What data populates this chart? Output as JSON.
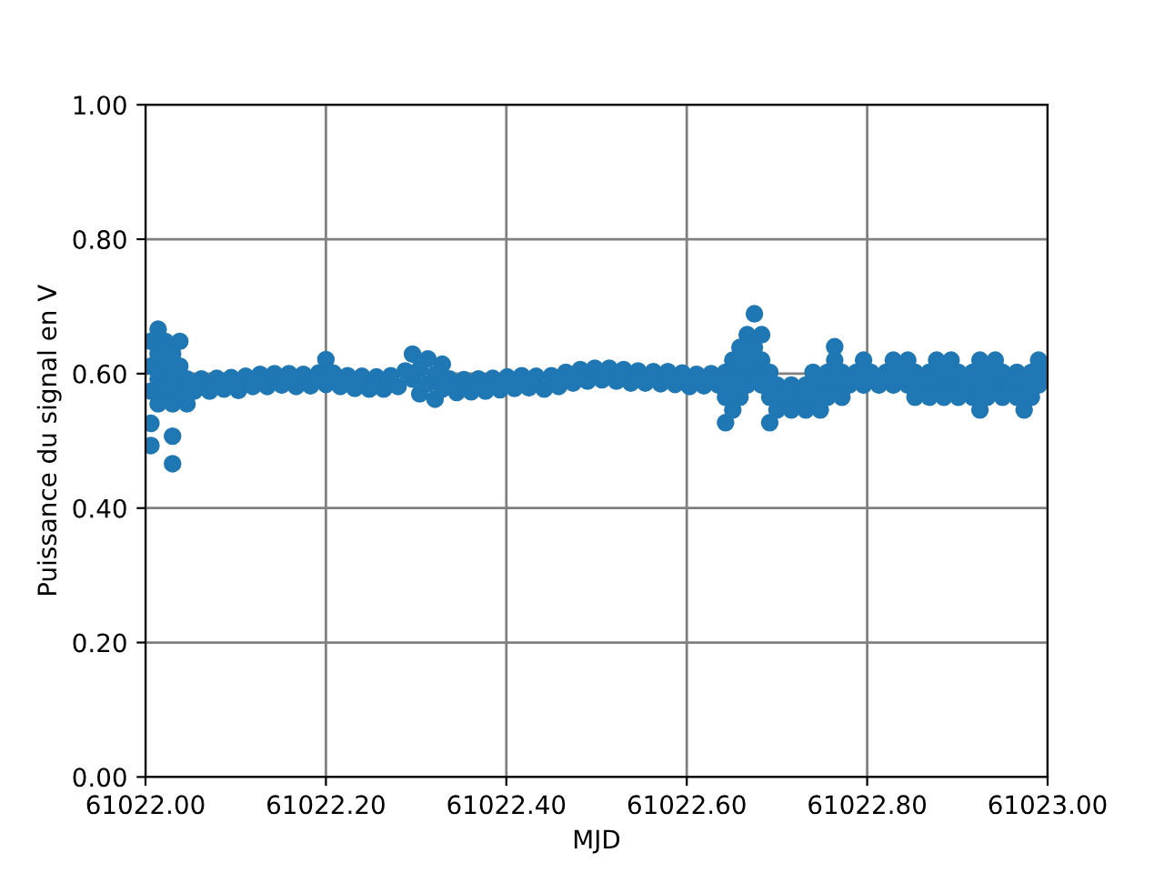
{
  "chart_data": {
    "type": "scatter",
    "xlabel": "MJD",
    "ylabel": "Puissance du signal en V",
    "color": "#1f77b4",
    "marker": "circle",
    "grid": true,
    "xlim": [
      61022.0,
      61023.0
    ],
    "xticks": [
      {
        "value": 61022.0,
        "label": "61022.00"
      },
      {
        "value": 61022.2,
        "label": "61022.20"
      },
      {
        "value": 61022.4,
        "label": "61022.40"
      },
      {
        "value": 61022.6,
        "label": "61022.60"
      },
      {
        "value": 61022.8,
        "label": "61022.80"
      },
      {
        "value": 61023.0,
        "label": "61023.00"
      }
    ],
    "ylim": [
      0,
      1
    ],
    "yticks": [
      {
        "value": 0,
        "label": "0.00"
      },
      {
        "value": 0.2,
        "label": "0.20"
      },
      {
        "value": 0.4,
        "label": "0.40"
      },
      {
        "value": 0.6,
        "label": "0.60"
      },
      {
        "value": 0.8,
        "label": "0.80"
      },
      {
        "value": 1.0,
        "label": "1.00"
      }
    ],
    "x": [
      61022.006,
      61022.006,
      61022.006,
      61022.006,
      61022.006,
      61022.014,
      61022.014,
      61022.014,
      61022.014,
      61022.022,
      61022.022,
      61022.022,
      61022.03,
      61022.03,
      61022.03,
      61022.03,
      61022.03,
      61022.038,
      61022.038,
      61022.038,
      61022.046,
      61022.046,
      61022.054,
      61022.062,
      61022.071,
      61022.079,
      61022.087,
      61022.095,
      61022.103,
      61022.111,
      61022.119,
      61022.127,
      61022.135,
      61022.143,
      61022.151,
      61022.159,
      61022.167,
      61022.175,
      61022.183,
      61022.192,
      61022.2,
      61022.2,
      61022.208,
      61022.216,
      61022.224,
      61022.232,
      61022.24,
      61022.248,
      61022.256,
      61022.264,
      61022.272,
      61022.28,
      61022.288,
      61022.296,
      61022.296,
      61022.304,
      61022.304,
      61022.313,
      61022.313,
      61022.321,
      61022.321,
      61022.329,
      61022.329,
      61022.337,
      61022.345,
      61022.353,
      61022.361,
      61022.369,
      61022.377,
      61022.385,
      61022.393,
      61022.401,
      61022.409,
      61022.417,
      61022.425,
      61022.433,
      61022.442,
      61022.45,
      61022.458,
      61022.466,
      61022.474,
      61022.482,
      61022.49,
      61022.498,
      61022.506,
      61022.514,
      61022.522,
      61022.53,
      61022.538,
      61022.546,
      61022.554,
      61022.563,
      61022.571,
      61022.579,
      61022.587,
      61022.595,
      61022.603,
      61022.611,
      61022.619,
      61022.627,
      61022.635,
      61022.643,
      61022.643,
      61022.643,
      61022.651,
      61022.651,
      61022.651,
      61022.659,
      61022.659,
      61022.659,
      61022.667,
      61022.667,
      61022.667,
      61022.675,
      61022.675,
      61022.675,
      61022.683,
      61022.683,
      61022.683,
      61022.692,
      61022.692,
      61022.692,
      61022.7,
      61022.7,
      61022.708,
      61022.716,
      61022.716,
      61022.724,
      61022.732,
      61022.732,
      61022.74,
      61022.74,
      61022.748,
      61022.748,
      61022.756,
      61022.756,
      61022.764,
      61022.764,
      61022.764,
      61022.772,
      61022.772,
      61022.78,
      61022.788,
      61022.796,
      61022.796,
      61022.804,
      61022.813,
      61022.821,
      61022.829,
      61022.829,
      61022.837,
      61022.845,
      61022.845,
      61022.853,
      61022.853,
      61022.861,
      61022.869,
      61022.869,
      61022.877,
      61022.877,
      61022.885,
      61022.885,
      61022.893,
      61022.893,
      61022.901,
      61022.901,
      61022.909,
      61022.917,
      61022.917,
      61022.925,
      61022.925,
      61022.925,
      61022.933,
      61022.933,
      61022.942,
      61022.942,
      61022.95,
      61022.95,
      61022.958,
      61022.966,
      61022.966,
      61022.974,
      61022.974,
      61022.982,
      61022.982,
      61022.99,
      61022.99,
      61022.998
    ],
    "values": [
      0.574,
      0.611,
      0.648,
      0.526,
      0.493,
      0.555,
      0.592,
      0.629,
      0.666,
      0.574,
      0.611,
      0.648,
      0.555,
      0.592,
      0.629,
      0.507,
      0.466,
      0.574,
      0.611,
      0.648,
      0.555,
      0.592,
      0.574,
      0.592,
      0.574,
      0.593,
      0.577,
      0.594,
      0.575,
      0.596,
      0.581,
      0.599,
      0.581,
      0.6,
      0.583,
      0.6,
      0.581,
      0.599,
      0.582,
      0.601,
      0.584,
      0.621,
      0.601,
      0.581,
      0.597,
      0.578,
      0.596,
      0.577,
      0.595,
      0.577,
      0.597,
      0.581,
      0.604,
      0.592,
      0.629,
      0.607,
      0.57,
      0.585,
      0.622,
      0.599,
      0.562,
      0.577,
      0.614,
      0.592,
      0.572,
      0.591,
      0.573,
      0.592,
      0.574,
      0.593,
      0.576,
      0.595,
      0.578,
      0.597,
      0.579,
      0.596,
      0.577,
      0.597,
      0.581,
      0.602,
      0.586,
      0.606,
      0.589,
      0.608,
      0.591,
      0.608,
      0.589,
      0.606,
      0.586,
      0.604,
      0.586,
      0.603,
      0.585,
      0.603,
      0.584,
      0.601,
      0.581,
      0.599,
      0.582,
      0.6,
      0.583,
      0.602,
      0.565,
      0.527,
      0.62,
      0.583,
      0.546,
      0.639,
      0.602,
      0.565,
      0.658,
      0.62,
      0.583,
      0.689,
      0.639,
      0.602,
      0.658,
      0.62,
      0.583,
      0.602,
      0.565,
      0.527,
      0.546,
      0.583,
      0.565,
      0.546,
      0.583,
      0.565,
      0.546,
      0.583,
      0.565,
      0.602,
      0.546,
      0.583,
      0.565,
      0.602,
      0.583,
      0.62,
      0.64,
      0.565,
      0.602,
      0.583,
      0.602,
      0.583,
      0.62,
      0.602,
      0.583,
      0.602,
      0.583,
      0.62,
      0.602,
      0.583,
      0.62,
      0.565,
      0.602,
      0.583,
      0.565,
      0.602,
      0.583,
      0.62,
      0.565,
      0.602,
      0.583,
      0.62,
      0.565,
      0.602,
      0.583,
      0.565,
      0.602,
      0.546,
      0.583,
      0.62,
      0.565,
      0.602,
      0.583,
      0.62,
      0.565,
      0.602,
      0.583,
      0.565,
      0.602,
      0.546,
      0.583,
      0.565,
      0.602,
      0.583,
      0.62,
      0.602
    ]
  }
}
